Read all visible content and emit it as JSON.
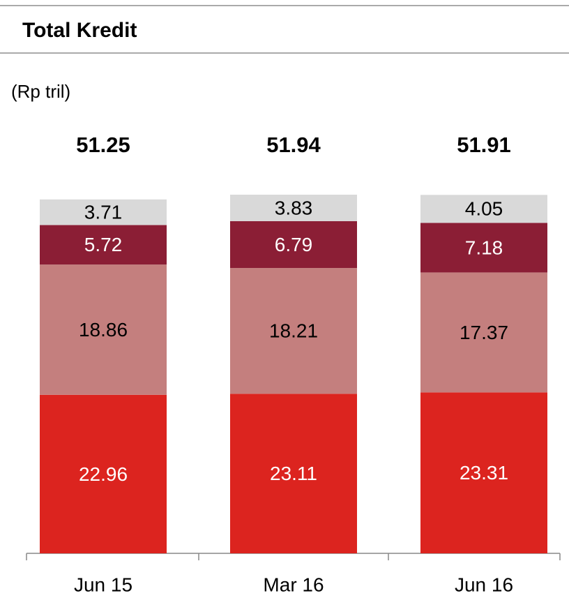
{
  "chart_data": {
    "type": "stacked_bar",
    "title": "Total Kredit",
    "subtitle": "(Rp tril)",
    "categories": [
      "Jun 15",
      "Mar 16",
      "Jun 16"
    ],
    "totals": [
      51.25,
      51.94,
      51.91
    ],
    "series": [
      {
        "color": "#dc241f",
        "label_color": "#ffffff",
        "values": [
          22.96,
          23.11,
          23.31
        ]
      },
      {
        "color": "#c47f7e",
        "label_color": "#000000",
        "values": [
          18.86,
          18.21,
          17.37
        ]
      },
      {
        "color": "#8b1e35",
        "label_color": "#ffffff",
        "values": [
          5.72,
          6.79,
          7.18
        ]
      },
      {
        "color": "#d9d9d9",
        "label_color": "#000000",
        "values": [
          3.71,
          3.83,
          4.05
        ]
      }
    ]
  }
}
